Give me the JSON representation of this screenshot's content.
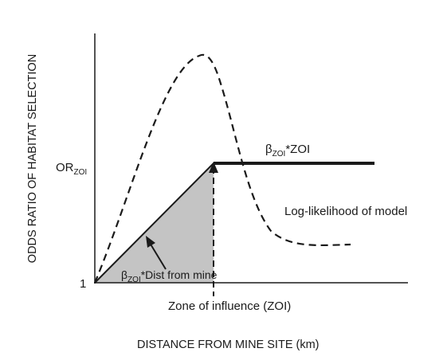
{
  "diagram": {
    "y_axis_label": "ODDS RATIO OF HABITAT SELECTION",
    "x_axis_label": "DISTANCE FROM MINE SITE (km)",
    "y_tick_or": {
      "main": "OR",
      "sub": "ZOI"
    },
    "y_tick_one": "1",
    "label_beta_zoi": {
      "beta": "β",
      "sub": "ZOI",
      "rest": "*ZOI"
    },
    "label_loglik": "Log-likelihood of model",
    "label_beta_dist": {
      "beta": "β",
      "sub": "ZOI",
      "rest": "*Dist from mine"
    },
    "label_zoi": "Zone of influence (ZOI)"
  }
}
